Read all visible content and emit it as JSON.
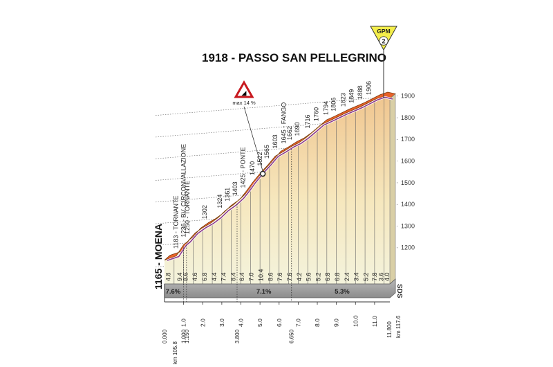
{
  "chart_data": {
    "type": "area",
    "title": "1918 - PASSO SAN PELLEGRINO",
    "start_label": "1165 - MOENA",
    "gpm": {
      "label": "GPM",
      "category": "2"
    },
    "steep_sign": {
      "label": "max 14 %"
    },
    "sds_label": "SDS",
    "ylim": [
      1100,
      1950
    ],
    "yticks": [
      "1200",
      "1300",
      "1400",
      "1500",
      "1600",
      "1700",
      "1800",
      "1900"
    ],
    "ytick_values": [
      1200,
      1300,
      1400,
      1500,
      1600,
      1700,
      1800,
      1900
    ],
    "xlim": [
      0,
      11.8
    ],
    "xticks": [
      "1.0",
      "2.0",
      "3.0",
      "4.0",
      "5.0",
      "6.0",
      "7.0",
      "8.0",
      "9.0",
      "10.0",
      "11.0"
    ],
    "xtick_values": [
      1,
      2,
      3,
      4,
      5,
      6,
      7,
      8,
      9,
      10,
      11
    ],
    "profile_x": [
      0,
      0.6,
      1.0,
      1.2,
      1.6,
      2.0,
      2.4,
      2.8,
      3.2,
      3.6,
      4.0,
      4.3,
      4.6,
      5.0,
      5.4,
      5.8,
      6.2,
      6.65,
      7.0,
      7.4,
      7.8,
      8.2,
      8.6,
      9.0,
      9.4,
      9.8,
      10.2,
      10.6,
      11.0,
      11.4,
      11.8
    ],
    "profile_y": [
      1165,
      1183,
      1236,
      1250,
      1290,
      1315,
      1335,
      1361,
      1395,
      1420,
      1452,
      1485,
      1522,
      1565,
      1603,
      1645,
      1665,
      1690,
      1705,
      1730,
      1760,
      1790,
      1806,
      1823,
      1840,
      1855,
      1870,
      1888,
      1906,
      1918,
      1910
    ],
    "point_labels": [
      {
        "x": 0.6,
        "alt": "1183",
        "text": "1183 - TORNANTE"
      },
      {
        "x": 1.0,
        "alt": "1236",
        "text": "1236 - BV. CIRCONVALLAZIONE"
      },
      {
        "x": 1.2,
        "alt": "1250",
        "text": "1250 - TORNANTE"
      },
      {
        "x": 2.1,
        "alt": "1302",
        "text": "1302"
      },
      {
        "x": 2.9,
        "alt": "1324",
        "text": "1324"
      },
      {
        "x": 3.3,
        "alt": "1361",
        "text": "1361"
      },
      {
        "x": 3.7,
        "alt": "1403",
        "text": "1403"
      },
      {
        "x": 4.1,
        "alt": "1425",
        "text": "1425 - PONTE"
      },
      {
        "x": 4.6,
        "alt": "1470",
        "text": "1470"
      },
      {
        "x": 5.0,
        "alt": "1522",
        "text": "1522"
      },
      {
        "x": 5.35,
        "alt": "1565",
        "text": "1565"
      },
      {
        "x": 5.8,
        "alt": "1603",
        "text": "1603"
      },
      {
        "x": 6.25,
        "alt": "1645",
        "text": "1645 - FANGO"
      },
      {
        "x": 6.55,
        "alt": "1662",
        "text": "1662"
      },
      {
        "x": 6.95,
        "alt": "1690",
        "text": "1690"
      },
      {
        "x": 7.5,
        "alt": "1716",
        "text": "1716"
      },
      {
        "x": 7.95,
        "alt": "1760",
        "text": "1760"
      },
      {
        "x": 8.45,
        "alt": "1794",
        "text": "1794"
      },
      {
        "x": 8.85,
        "alt": "1806",
        "text": "1806"
      },
      {
        "x": 9.35,
        "alt": "1823",
        "text": "1823"
      },
      {
        "x": 9.8,
        "alt": "1849",
        "text": "1849"
      },
      {
        "x": 10.25,
        "alt": "1888",
        "text": "1888"
      },
      {
        "x": 10.7,
        "alt": "1906",
        "text": "1906"
      }
    ],
    "segment_gradients": [
      {
        "x": 0.2,
        "text": "4.8"
      },
      {
        "x": 0.8,
        "text": "9.4"
      },
      {
        "x": 1.1,
        "text": "8.6"
      },
      {
        "x": 1.6,
        "text": "4.6"
      },
      {
        "x": 2.1,
        "text": "6.8"
      },
      {
        "x": 2.6,
        "text": "4.4"
      },
      {
        "x": 3.1,
        "text": "7.4"
      },
      {
        "x": 3.6,
        "text": "8.4"
      },
      {
        "x": 4.05,
        "text": "6.4"
      },
      {
        "x": 4.55,
        "text": "7.0"
      },
      {
        "x": 5.05,
        "text": "10.4"
      },
      {
        "x": 5.55,
        "text": "8.6"
      },
      {
        "x": 6.05,
        "text": "7.6"
      },
      {
        "x": 6.55,
        "text": "7.6"
      },
      {
        "x": 7.05,
        "text": "4.2"
      },
      {
        "x": 7.55,
        "text": "5.6"
      },
      {
        "x": 8.05,
        "text": "5.2"
      },
      {
        "x": 8.55,
        "text": "6.8"
      },
      {
        "x": 9.05,
        "text": "6.8"
      },
      {
        "x": 9.55,
        "text": "2.4"
      },
      {
        "x": 10.05,
        "text": "3.4"
      },
      {
        "x": 10.55,
        "text": "5.2"
      },
      {
        "x": 11.0,
        "text": "7.8"
      },
      {
        "x": 11.35,
        "text": "3.6"
      },
      {
        "x": 11.65,
        "text": "4.0"
      }
    ],
    "average_gradients": [
      {
        "x": 0.45,
        "text": "7.6%"
      },
      {
        "x": 5.2,
        "text": "7.1%"
      },
      {
        "x": 9.3,
        "text": "5.3%"
      }
    ],
    "km_markers": [
      {
        "x": 0,
        "text": "0.000"
      },
      {
        "x": 1.0,
        "text": "1.000"
      },
      {
        "x": 1.15,
        "text": "1.150"
      },
      {
        "x": 3.8,
        "text": "3.800"
      },
      {
        "x": 6.65,
        "text": "6.650"
      }
    ],
    "km_start": "km 105.8",
    "km_end_distance": "11.800",
    "km_end": "km 117.6",
    "steep_point_x": 5.0,
    "colors": {
      "area_top": "#f7ebc3",
      "area_bottom": "#f3f0dd",
      "profile": "#e8622a",
      "profile_outline": "#7a3a0c",
      "road": "#8b3a8b",
      "base": "#9a9a9a",
      "grid": "#777777"
    }
  }
}
